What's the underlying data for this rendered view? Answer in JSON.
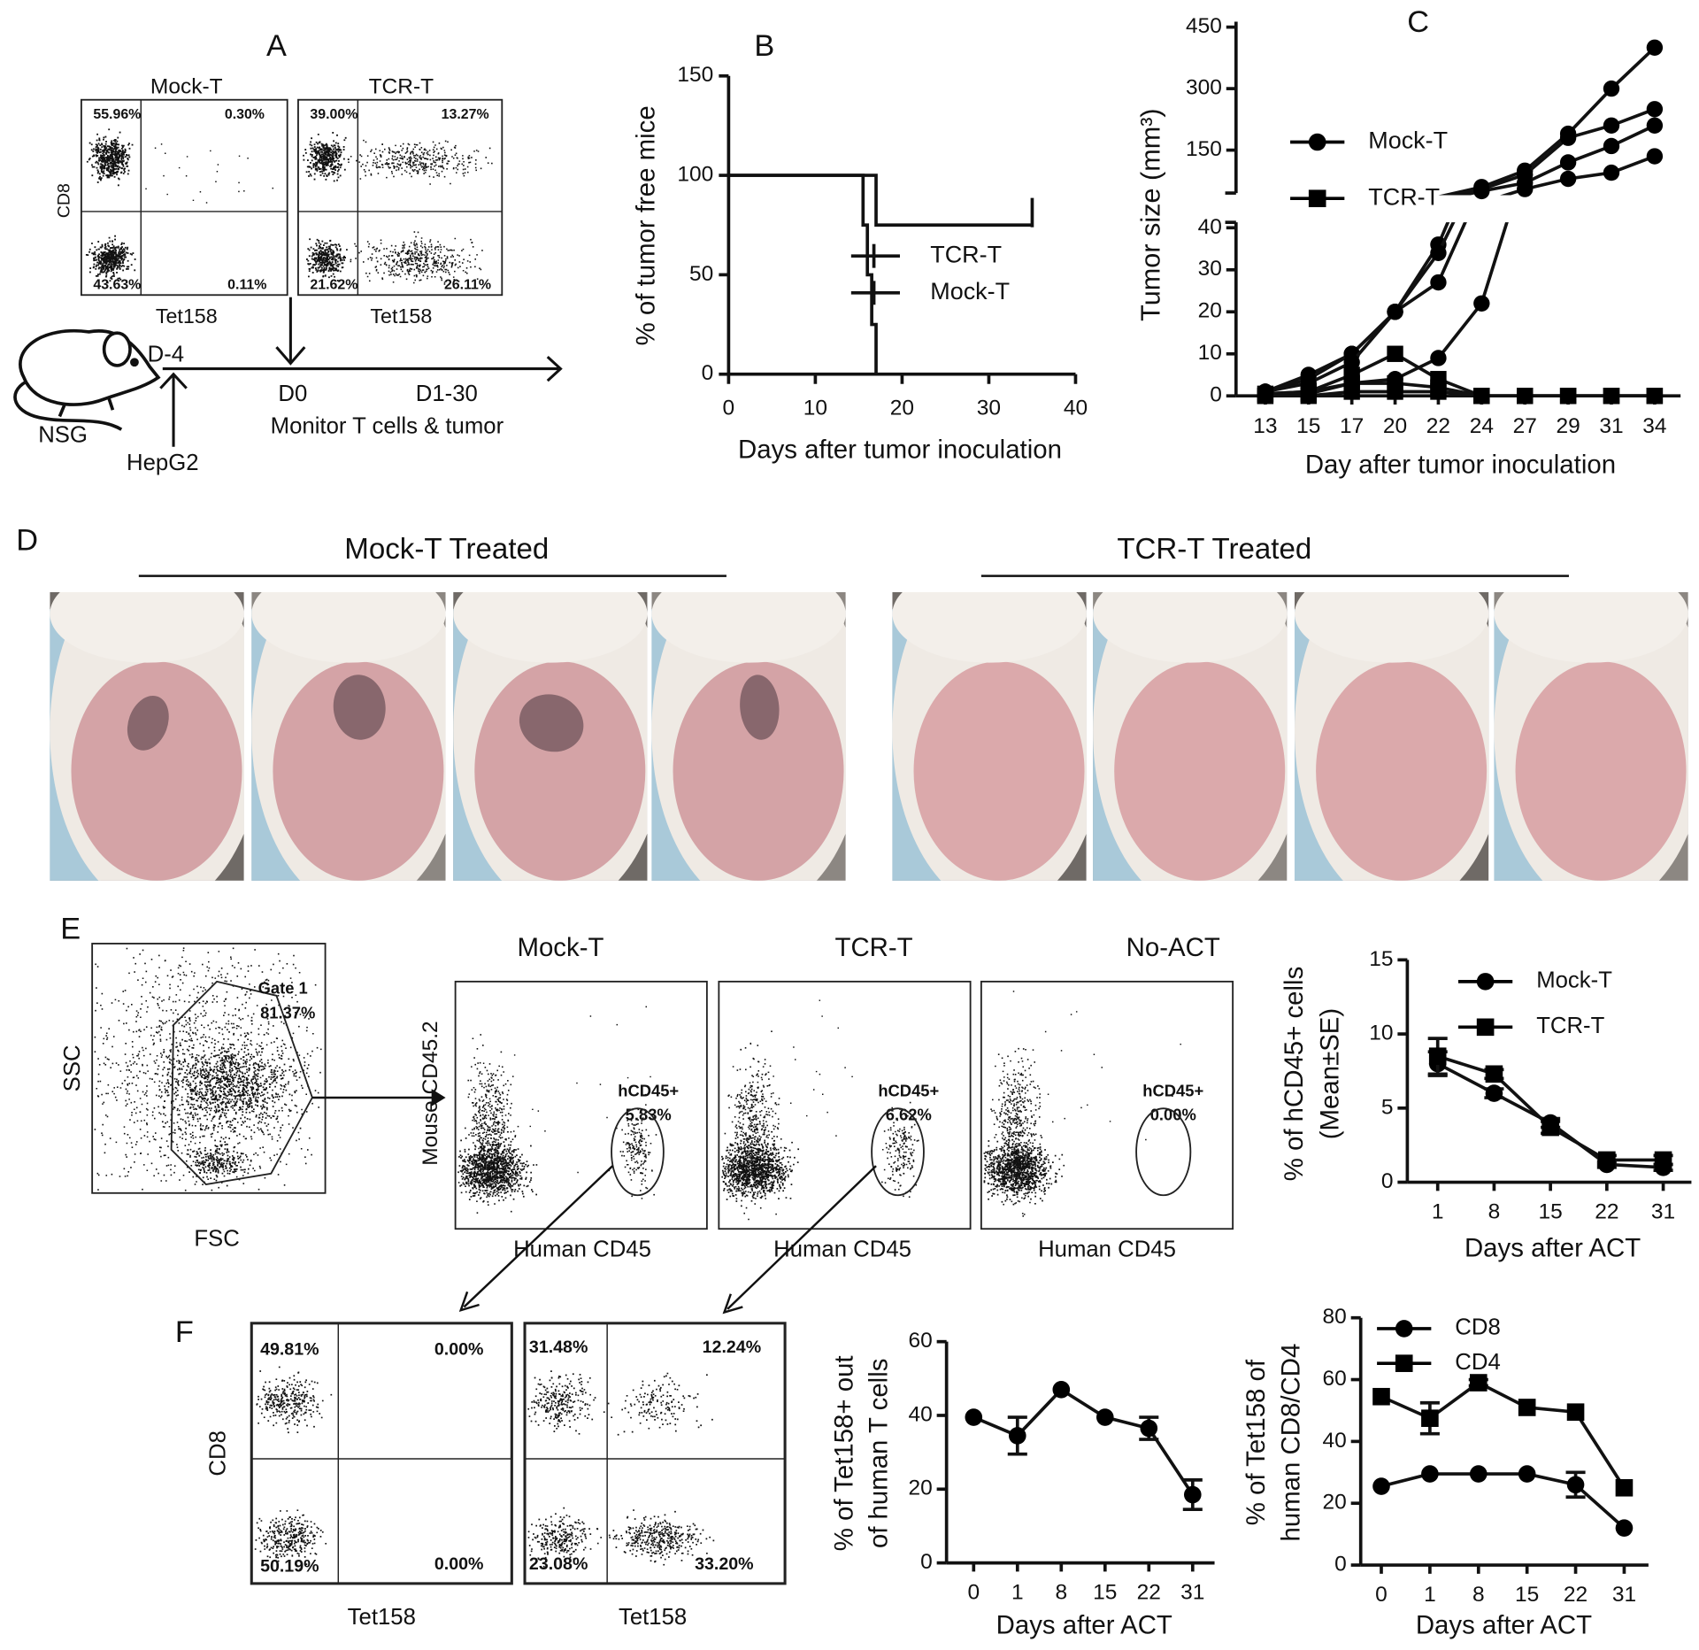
{
  "panel_labels": [
    "A",
    "B",
    "C",
    "D",
    "E",
    "F"
  ],
  "panel_a": {
    "y_label": "CD8",
    "plots": [
      {
        "title": "Mock-T",
        "x_label": "Tet158",
        "quadrants": [
          "55.96%",
          "0.30%",
          "43.63%",
          "0.11%"
        ]
      },
      {
        "title": "TCR-T",
        "x_label": "Tet158",
        "quadrants": [
          "39.00%",
          "13.27%",
          "21.62%",
          "26.11%"
        ]
      }
    ],
    "timeline": {
      "start": "D-4",
      "day0": "D0",
      "days": "D1-30",
      "note": "Monitor T cells & tumor",
      "mouse": "NSG",
      "cells": "HepG2"
    }
  },
  "panel_d": {
    "groups": [
      "Mock-T Treated",
      "TCR-T Treated"
    ]
  },
  "panel_e": {
    "gate": {
      "label": "Gate 1",
      "percent": "81.37%",
      "x_label": "FSC",
      "y_label": "SSC"
    },
    "y_label": "Mouse CD45.2",
    "plots": [
      {
        "title": "Mock-T",
        "x_label": "Human CD45",
        "gate_label": "hCD45+",
        "percent": "5.83%"
      },
      {
        "title": "TCR-T",
        "x_label": "Human CD45",
        "gate_label": "hCD45+",
        "percent": "6.62%"
      },
      {
        "title": "No-ACT",
        "x_label": "Human CD45",
        "gate_label": "hCD45+",
        "percent": "0.00%"
      }
    ]
  },
  "panel_f": {
    "y_label": "CD8",
    "plots": [
      {
        "x_label": "Tet158",
        "quadrants": [
          "49.81%",
          "0.00%",
          "50.19%",
          "0.00%"
        ]
      },
      {
        "x_label": "Tet158",
        "quadrants": [
          "31.48%",
          "12.24%",
          "23.08%",
          "33.20%"
        ]
      }
    ]
  },
  "chart_data": [
    {
      "type": "step",
      "y_label": "% of tumor free mice",
      "x_label": "Days after tumor inoculation",
      "xlim": [
        0,
        40
      ],
      "xticks": [
        0,
        10,
        20,
        30,
        40
      ],
      "ylim": [
        0,
        150
      ],
      "yticks": [
        0,
        50,
        100,
        150
      ],
      "series": [
        {
          "name": "TCR-T",
          "color": "#000000",
          "x": [
            0,
            17,
            35
          ],
          "values": [
            100,
            75,
            75
          ]
        },
        {
          "name": "Mock-T",
          "color": "#000000",
          "x": [
            0,
            15.5,
            16,
            16.5,
            17
          ],
          "values": [
            100,
            75,
            50,
            25,
            0
          ]
        }
      ]
    },
    {
      "type": "line",
      "broken_axis": true,
      "y_label": "Tumor size (mm³)",
      "x_label": "Day after tumor inoculation",
      "categories": [
        13,
        15,
        17,
        20,
        22,
        24,
        27,
        29,
        31,
        34
      ],
      "ylim": [
        0,
        40
      ],
      "yticks": [
        0,
        10,
        20,
        30,
        40
      ],
      "ylim_upper": [
        40,
        450
      ],
      "yticks_upper": [
        150,
        300,
        450
      ],
      "series": [
        {
          "name": "Mock-T",
          "marker": "circle",
          "color": "#000000",
          "values": [
            [
              1,
              5,
              10,
              20,
              36,
              60,
              100,
              190,
              300,
              400
            ],
            [
              1,
              4,
              10,
              20,
              34,
              55,
              90,
              180,
              210,
              250
            ],
            [
              1,
              3,
              8,
              20,
              27,
              50,
              70,
              120,
              160,
              210
            ],
            [
              0.5,
              1,
              3,
              4,
              9,
              22,
              55,
              80,
              95,
              135
            ]
          ]
        },
        {
          "name": "TCR-T",
          "marker": "square",
          "color": "#000000",
          "values": [
            [
              0.5,
              1,
              5,
              10,
              4,
              0,
              0,
              0,
              0,
              0
            ],
            [
              0,
              0.5,
              3,
              3,
              2,
              0,
              0,
              0,
              0,
              0
            ],
            [
              0,
              0,
              1,
              1,
              1,
              0,
              0,
              0,
              0,
              0
            ]
          ]
        }
      ]
    },
    {
      "type": "line",
      "y_label": [
        "% of hCD45+ cells",
        "(Mean±SE)"
      ],
      "x_label": "Days after ACT",
      "categories": [
        1,
        8,
        15,
        22,
        31
      ],
      "ylim": [
        0,
        15
      ],
      "yticks": [
        0,
        5,
        10,
        15
      ],
      "series": [
        {
          "name": "Mock-T",
          "marker": "circle",
          "color": "#000000",
          "values": [
            8,
            6,
            4,
            1.2,
            1
          ],
          "errors": [
            0.8,
            0.3,
            0.3,
            0.2,
            0.2
          ]
        },
        {
          "name": "TCR-T",
          "marker": "square",
          "color": "#000000",
          "values": [
            8.5,
            7.3,
            3.7,
            1.5,
            1.5
          ],
          "errors": [
            1.2,
            0.3,
            0.4,
            0.3,
            0.3
          ]
        }
      ]
    },
    {
      "type": "line",
      "y_label": [
        "% of Tet158+ out",
        "of human T cells"
      ],
      "x_label": "Days after ACT",
      "categories": [
        0,
        1,
        8,
        15,
        22,
        31
      ],
      "ylim": [
        0,
        60
      ],
      "yticks": [
        0,
        20,
        40,
        60
      ],
      "series": [
        {
          "marker": "circle",
          "color": "#000000",
          "values": [
            39.5,
            34.5,
            47,
            39.5,
            36.5,
            18.5
          ],
          "errors": [
            0,
            5,
            0,
            0,
            3,
            4
          ]
        }
      ]
    },
    {
      "type": "line",
      "y_label": [
        "% of Tet158 of",
        "human CD8/CD4"
      ],
      "x_label": "Days after ACT",
      "categories": [
        0,
        1,
        8,
        15,
        22,
        31
      ],
      "ylim": [
        0,
        80
      ],
      "yticks": [
        0,
        20,
        40,
        60,
        80
      ],
      "series": [
        {
          "name": "CD8",
          "marker": "circle",
          "color": "#000000",
          "values": [
            25.5,
            29.5,
            29.5,
            29.5,
            26,
            12
          ],
          "errors": [
            0,
            0,
            0,
            0,
            4,
            0
          ]
        },
        {
          "name": "CD4",
          "marker": "square",
          "color": "#000000",
          "values": [
            54.5,
            47.5,
            59,
            51,
            49.5,
            25
          ],
          "errors": [
            0,
            5,
            1,
            0,
            0,
            0
          ]
        }
      ]
    }
  ]
}
